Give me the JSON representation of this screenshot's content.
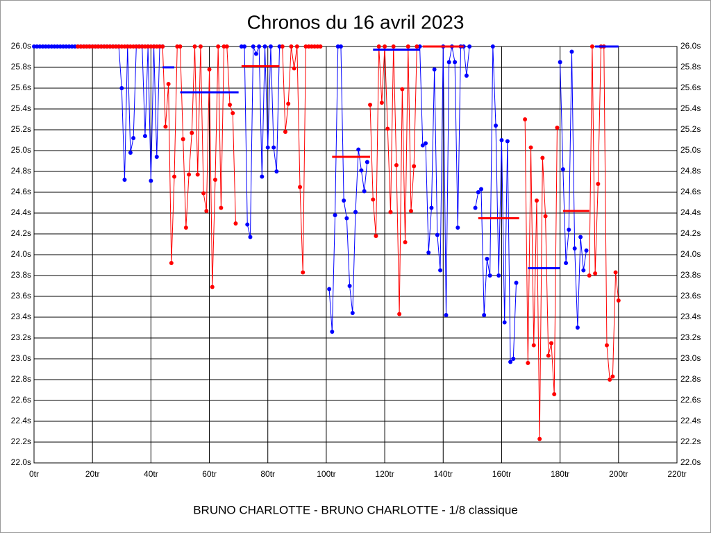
{
  "chart_data": {
    "type": "line",
    "title": "Chronos du 16 avril 2023",
    "footer": "BRUNO CHARLOTTE - BRUNO CHARLOTTE - 1/8 classique",
    "grid": true,
    "xlim": [
      0,
      220
    ],
    "ylim": [
      22.0,
      26.0
    ],
    "xticks": [
      {
        "value": 0,
        "label": "0tr"
      },
      {
        "value": 20,
        "label": "20tr"
      },
      {
        "value": 40,
        "label": "40tr"
      },
      {
        "value": 60,
        "label": "60tr"
      },
      {
        "value": 80,
        "label": "80tr"
      },
      {
        "value": 100,
        "label": "100tr"
      },
      {
        "value": 120,
        "label": "120tr"
      },
      {
        "value": 140,
        "label": "140tr"
      },
      {
        "value": 160,
        "label": "160tr"
      },
      {
        "value": 180,
        "label": "180tr"
      },
      {
        "value": 200,
        "label": "200tr"
      },
      {
        "value": 220,
        "label": "220tr"
      }
    ],
    "yticks": [
      {
        "value": 22.0,
        "label": "22.0s"
      },
      {
        "value": 22.2,
        "label": "22.2s"
      },
      {
        "value": 22.4,
        "label": "22.4s"
      },
      {
        "value": 22.6,
        "label": "22.6s"
      },
      {
        "value": 22.8,
        "label": "22.8s"
      },
      {
        "value": 23.0,
        "label": "23.0s"
      },
      {
        "value": 23.2,
        "label": "23.2s"
      },
      {
        "value": 23.4,
        "label": "23.4s"
      },
      {
        "value": 23.6,
        "label": "23.6s"
      },
      {
        "value": 23.8,
        "label": "23.8s"
      },
      {
        "value": 24.0,
        "label": "24.0s"
      },
      {
        "value": 24.2,
        "label": "24.2s"
      },
      {
        "value": 24.4,
        "label": "24.4s"
      },
      {
        "value": 24.6,
        "label": "24.6s"
      },
      {
        "value": 24.8,
        "label": "24.8s"
      },
      {
        "value": 25.0,
        "label": "25.0s"
      },
      {
        "value": 25.2,
        "label": "25.2s"
      },
      {
        "value": 25.4,
        "label": "25.4s"
      },
      {
        "value": 25.6,
        "label": "25.6s"
      },
      {
        "value": 25.8,
        "label": "25.8s"
      },
      {
        "value": 26.0,
        "label": "26.0s"
      }
    ],
    "x": [
      0,
      1,
      2,
      3,
      4,
      5,
      6,
      7,
      8,
      9,
      10,
      11,
      12,
      13,
      14,
      15,
      16,
      17,
      18,
      19,
      20,
      21,
      22,
      23,
      24,
      25,
      26,
      27,
      28,
      29,
      30,
      31,
      32,
      33,
      34,
      35,
      36,
      37,
      38,
      39,
      40,
      41,
      42,
      43,
      44,
      45,
      46,
      47,
      48,
      49,
      50,
      51,
      52,
      53,
      54,
      55,
      56,
      57,
      58,
      59,
      60,
      61,
      62,
      63,
      64,
      65,
      66,
      67,
      68,
      69,
      70,
      71,
      72,
      73,
      74,
      75,
      76,
      77,
      78,
      79,
      80,
      81,
      82,
      83,
      84,
      85,
      86,
      87,
      88,
      89,
      90,
      91,
      92,
      93,
      94,
      95,
      96,
      97,
      98,
      99,
      100,
      101,
      102,
      103,
      104,
      105,
      106,
      107,
      108,
      109,
      110,
      111,
      112,
      113,
      114,
      115,
      116,
      117,
      118,
      119,
      120,
      121,
      122,
      123,
      124,
      125,
      126,
      127,
      128,
      129,
      130,
      131,
      132,
      133,
      134,
      135,
      136,
      137,
      138,
      139,
      140,
      141,
      142,
      143,
      144,
      145,
      146,
      147,
      148,
      149,
      150,
      151,
      152,
      153,
      154,
      155,
      156,
      157,
      158,
      159,
      160,
      161,
      162,
      163,
      164,
      165,
      166,
      167,
      168,
      169,
      170,
      171,
      172,
      173,
      174,
      175,
      176,
      177,
      178,
      179,
      180,
      181,
      182,
      183,
      184,
      185,
      186,
      187,
      188,
      189,
      190,
      191,
      192,
      193,
      194,
      195,
      196,
      197,
      198,
      199,
      200
    ],
    "series": [
      {
        "color": "#0000ff",
        "values": [
          26,
          26,
          26,
          26,
          26,
          26,
          26,
          26,
          26,
          26,
          26,
          26,
          26,
          26,
          26,
          26,
          26,
          26,
          26,
          26,
          26,
          26,
          26,
          26,
          26,
          26,
          26,
          26,
          26,
          26,
          25.6,
          24.72,
          26,
          24.98,
          25.12,
          26,
          26,
          26,
          25.14,
          26,
          24.71,
          26,
          24.94,
          26,
          26,
          null,
          null,
          null,
          null,
          null,
          null,
          null,
          null,
          null,
          null,
          null,
          null,
          null,
          null,
          null,
          null,
          null,
          null,
          null,
          null,
          null,
          null,
          null,
          null,
          null,
          null,
          26,
          26,
          24.29,
          24.17,
          26,
          25.93,
          26,
          24.75,
          26,
          25.03,
          26,
          25.03,
          24.8,
          26,
          null,
          null,
          null,
          null,
          null,
          null,
          null,
          null,
          null,
          null,
          null,
          null,
          null,
          null,
          null,
          null,
          23.67,
          23.26,
          24.38,
          26,
          26,
          24.52,
          24.35,
          23.7,
          23.44,
          24.41,
          25.01,
          24.81,
          24.61,
          24.89,
          null,
          null,
          null,
          null,
          null,
          null,
          null,
          null,
          null,
          null,
          null,
          null,
          null,
          null,
          null,
          null,
          null,
          26,
          25.05,
          25.07,
          24.02,
          24.45,
          25.78,
          24.19,
          23.85,
          26,
          23.42,
          25.85,
          26,
          25.85,
          24.26,
          26,
          26,
          25.72,
          26,
          null,
          24.45,
          24.6,
          24.63,
          23.42,
          23.96,
          23.8,
          26,
          25.24,
          23.8,
          25.1,
          23.35,
          25.09,
          22.97,
          23.0,
          23.73,
          null,
          null,
          null,
          null,
          null,
          null,
          null,
          null,
          null,
          null,
          null,
          null,
          null,
          null,
          25.85,
          24.82,
          23.92,
          24.24,
          25.95,
          24.06,
          23.3,
          24.17,
          23.85,
          24.04,
          null,
          null,
          null,
          null,
          null,
          null,
          null,
          null,
          null,
          null,
          null
        ]
      },
      {
        "color": "#ff0000",
        "values": [
          null,
          null,
          null,
          null,
          null,
          null,
          null,
          null,
          null,
          null,
          null,
          null,
          null,
          null,
          null,
          26,
          26,
          26,
          26,
          26,
          26,
          26,
          26,
          26,
          26,
          26,
          26,
          26,
          26,
          26,
          26,
          26,
          26,
          26,
          26,
          26,
          26,
          26,
          26,
          26,
          26,
          26,
          26,
          26,
          26,
          25.23,
          25.64,
          23.92,
          24.75,
          26,
          26,
          25.11,
          24.26,
          24.77,
          25.17,
          26,
          24.77,
          26,
          24.59,
          24.42,
          25.78,
          23.69,
          24.72,
          26,
          24.45,
          26,
          26,
          25.44,
          25.36,
          24.3,
          null,
          null,
          null,
          null,
          null,
          null,
          null,
          null,
          null,
          null,
          null,
          null,
          null,
          null,
          null,
          26,
          25.18,
          25.45,
          26,
          25.79,
          26,
          24.65,
          23.83,
          26,
          26,
          26,
          26,
          26,
          26,
          null,
          null,
          null,
          null,
          null,
          null,
          null,
          null,
          null,
          null,
          null,
          null,
          null,
          null,
          null,
          null,
          25.44,
          24.53,
          24.18,
          26,
          25.46,
          26,
          25.21,
          24.41,
          26,
          24.86,
          23.43,
          25.59,
          24.12,
          26,
          24.42,
          24.85,
          26,
          null,
          null,
          null,
          null,
          null,
          null,
          null,
          null,
          null,
          null,
          null,
          null,
          null,
          null,
          null,
          null,
          null,
          null,
          null,
          null,
          null,
          null,
          null,
          null,
          null,
          null,
          null,
          null,
          null,
          null,
          null,
          null,
          null,
          null,
          null,
          null,
          25.3,
          22.96,
          25.03,
          23.13,
          24.52,
          22.23,
          24.93,
          24.37,
          23.03,
          23.15,
          22.66,
          25.22,
          null,
          null,
          null,
          null,
          null,
          null,
          null,
          null,
          null,
          null,
          23.8,
          26,
          23.82,
          24.68,
          26,
          26,
          23.13,
          22.8,
          22.83,
          23.83,
          23.56
        ]
      }
    ],
    "segments": [
      {
        "color": "#0000ff",
        "x": [
          44,
          48
        ],
        "value": 25.8
      },
      {
        "color": "#0000ff",
        "x": [
          50,
          70
        ],
        "value": 25.56
      },
      {
        "color": "#ff0000",
        "x": [
          71,
          84
        ],
        "value": 25.81
      },
      {
        "color": "#ff0000",
        "x": [
          102,
          115
        ],
        "value": 24.94
      },
      {
        "color": "#0000ff",
        "x": [
          116,
          132
        ],
        "value": 25.97
      },
      {
        "color": "#ff0000",
        "x": [
          133,
          147
        ],
        "value": 26.0
      },
      {
        "color": "#ff0000",
        "x": [
          152,
          166
        ],
        "value": 24.35
      },
      {
        "color": "#0000ff",
        "x": [
          169,
          180
        ],
        "value": 23.87
      },
      {
        "color": "#ff0000",
        "x": [
          181,
          190
        ],
        "value": 24.42
      },
      {
        "color": "#0000ff",
        "x": [
          192,
          200
        ],
        "value": 26.0
      }
    ]
  }
}
